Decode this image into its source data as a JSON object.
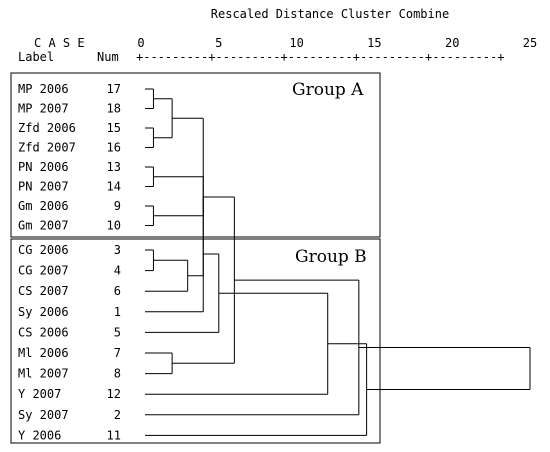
{
  "header": {
    "title": "Rescaled Distance Cluster Combine",
    "case_label": "C A S E",
    "label_col": "Label",
    "num_col": "Num",
    "scale_ticks": [
      "0",
      "5",
      "10",
      "15",
      "20",
      "25"
    ],
    "scale_line": "+---------+---------+---------+---------+---------+"
  },
  "groups": {
    "a": "Group A",
    "b": "Group B"
  },
  "cases": [
    {
      "label": "MP 2006",
      "num": "17"
    },
    {
      "label": "MP 2007",
      "num": "18"
    },
    {
      "label": "Zfd 2006",
      "num": "15"
    },
    {
      "label": "Zfd 2007",
      "num": "16"
    },
    {
      "label": "PN 2006",
      "num": "13"
    },
    {
      "label": "PN 2007",
      "num": "14"
    },
    {
      "label": "Gm 2006",
      "num": "9"
    },
    {
      "label": "Gm 2007",
      "num": "10"
    },
    {
      "label": "CG 2006",
      "num": "3"
    },
    {
      "label": "CG 2007",
      "num": "4"
    },
    {
      "label": "CS 2007",
      "num": "6"
    },
    {
      "label": "Sy 2006",
      "num": "1"
    },
    {
      "label": "CS 2006",
      "num": "5"
    },
    {
      "label": "Ml 2006",
      "num": "7"
    },
    {
      "label": "Ml 2007",
      "num": "8"
    },
    {
      "label": "Y 2007",
      "num": "12"
    },
    {
      "label": "Sy 2007",
      "num": "2"
    },
    {
      "label": "Y 2006",
      "num": "11"
    }
  ],
  "merges": [
    {
      "a": 0,
      "b": 1,
      "d": 0.8
    },
    {
      "a": 2,
      "b": 3,
      "d": 0.8
    },
    {
      "a": 4,
      "b": 5,
      "d": 0.8
    },
    {
      "a": 6,
      "b": 7,
      "d": 0.8
    },
    {
      "a": 8,
      "b": 9,
      "d": 0.8
    },
    {
      "a": 13,
      "b": 14,
      "d": 2.0
    },
    {
      "a": 18,
      "b": 19,
      "d": 2.0
    },
    {
      "a": 22,
      "b": 10,
      "d": 3.0
    },
    {
      "a": 21,
      "b": 20,
      "d": 4.0
    },
    {
      "a": 26,
      "b": 11,
      "d": 4.0
    },
    {
      "a": 25,
      "b": 24,
      "d": 4.0
    },
    {
      "a": 27,
      "b": 12,
      "d": 5.0
    },
    {
      "a": 28,
      "b": 23,
      "d": 6.0
    },
    {
      "a": 29,
      "b": 15,
      "d": 12.0
    },
    {
      "a": 30,
      "b": 16,
      "d": 14.0
    },
    {
      "a": 31,
      "b": 17,
      "d": 14.5
    },
    {
      "a": 32,
      "b": 33,
      "d": 25.0
    }
  ]
}
